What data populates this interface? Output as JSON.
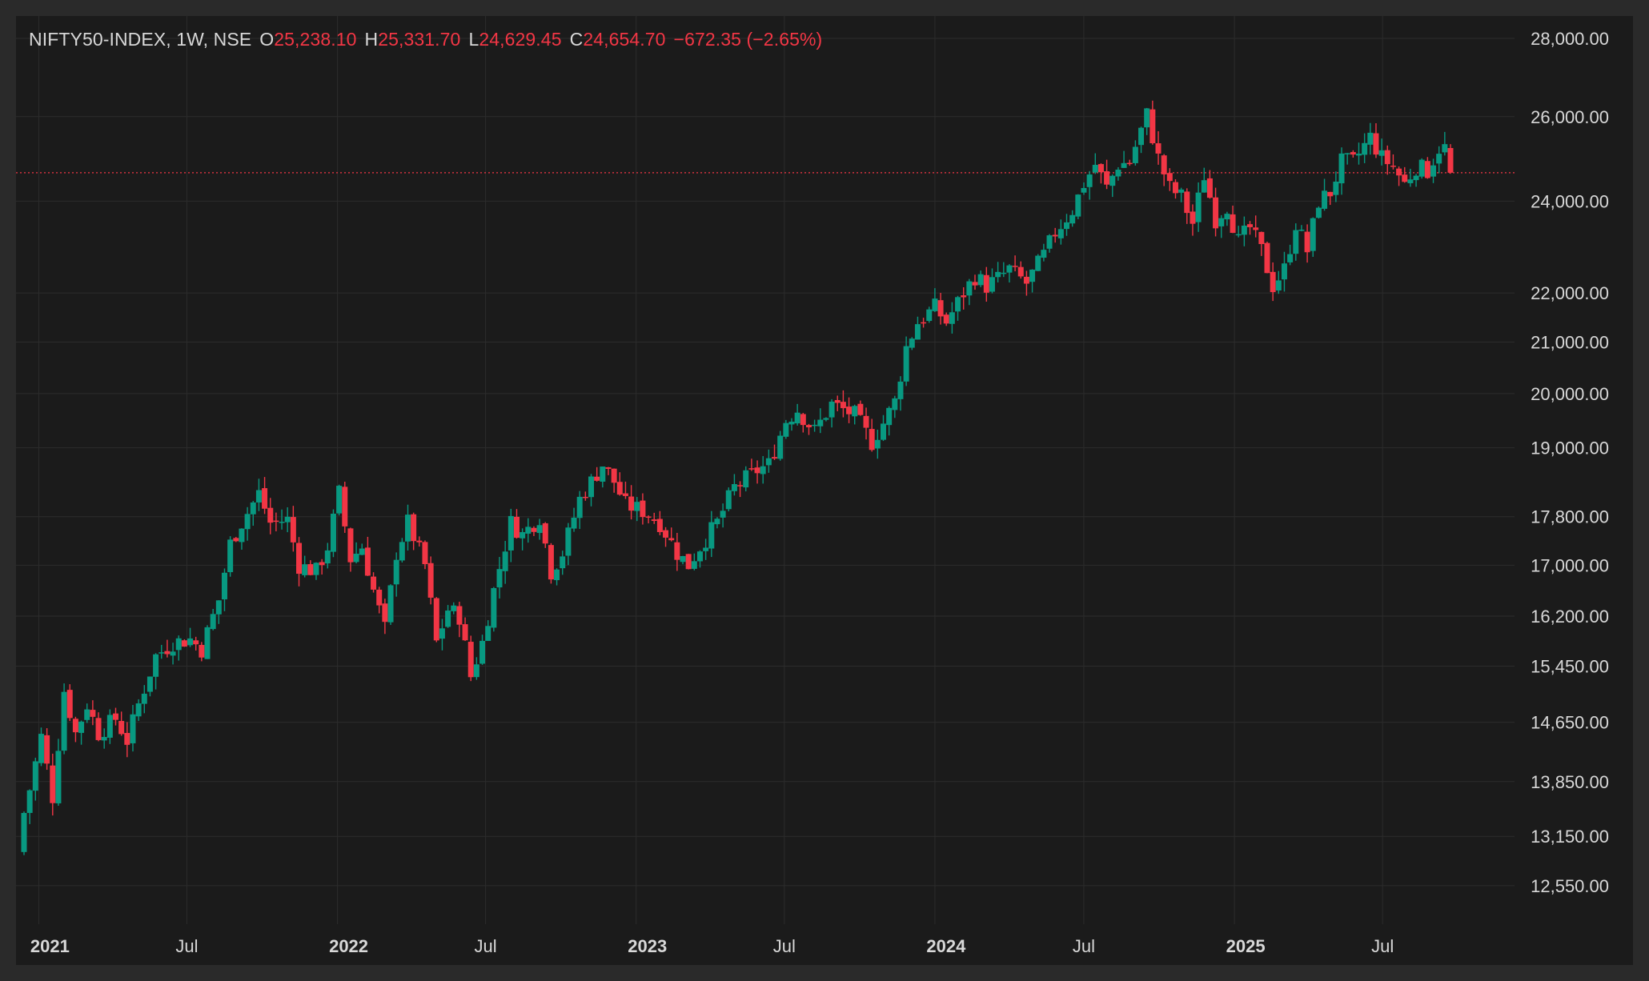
{
  "colors": {
    "background": "#1b1b1b",
    "frame": "#2a2a2a",
    "grid": "#2c2c2c",
    "up": "#089981",
    "down": "#f23645",
    "text": "#d8d8d8",
    "price_line": "#f23645"
  },
  "legend": {
    "symbol": "NIFTY50-INDEX, 1W, NSE",
    "open_label": "O",
    "open_value": "25,238.10",
    "high_label": "H",
    "high_value": "25,331.70",
    "low_label": "L",
    "low_value": "24,629.45",
    "close_label": "C",
    "close_value": "24,654.70",
    "change": "−672.35 (−2.65%)"
  },
  "chart_data": {
    "type": "candlestick",
    "title": "NIFTY50-INDEX, 1W, NSE",
    "y_scale": "log",
    "ylim": [
      12100,
      28600
    ],
    "y_ticks": [
      {
        "value": 28000,
        "label": "28,000.00"
      },
      {
        "value": 26000,
        "label": "26,000.00"
      },
      {
        "value": 24000,
        "label": "24,000.00"
      },
      {
        "value": 22000,
        "label": "22,000.00"
      },
      {
        "value": 21000,
        "label": "21,000.00"
      },
      {
        "value": 20000,
        "label": "20,000.00"
      },
      {
        "value": 19000,
        "label": "19,000.00"
      },
      {
        "value": 17800,
        "label": "17,800.00"
      },
      {
        "value": 17000,
        "label": "17,000.00"
      },
      {
        "value": 16200,
        "label": "16,200.00"
      },
      {
        "value": 15450,
        "label": "15,450.00"
      },
      {
        "value": 14650,
        "label": "14,650.00"
      },
      {
        "value": 13850,
        "label": "13,850.00"
      },
      {
        "value": 13150,
        "label": "13,150.00"
      },
      {
        "value": 12550,
        "label": "12,550.00"
      }
    ],
    "x_range": [
      "2020-12-14",
      "2025-09-22"
    ],
    "x_ticks": [
      {
        "date": "2021-01-01",
        "label": "2021",
        "major": true
      },
      {
        "date": "2021-07-01",
        "label": "Jul",
        "major": false
      },
      {
        "date": "2022-01-01",
        "label": "2022",
        "major": true
      },
      {
        "date": "2022-07-01",
        "label": "Jul",
        "major": false
      },
      {
        "date": "2023-01-01",
        "label": "2023",
        "major": true
      },
      {
        "date": "2023-07-01",
        "label": "Jul",
        "major": false
      },
      {
        "date": "2024-01-01",
        "label": "2024",
        "major": true
      },
      {
        "date": "2024-07-01",
        "label": "Jul",
        "major": false
      },
      {
        "date": "2025-01-01",
        "label": "2025",
        "major": true
      },
      {
        "date": "2025-07-01",
        "label": "Jul",
        "major": false
      }
    ],
    "current_price": 24654.7,
    "anchors": [
      [
        "2020-12-14",
        13150
      ],
      [
        "2020-12-28",
        13750
      ],
      [
        "2021-01-11",
        14450
      ],
      [
        "2021-01-25",
        13650
      ],
      [
        "2021-02-08",
        15100
      ],
      [
        "2021-02-22",
        14500
      ],
      [
        "2021-03-08",
        14900
      ],
      [
        "2021-03-22",
        14500
      ],
      [
        "2021-04-12",
        14700
      ],
      [
        "2021-04-26",
        14400
      ],
      [
        "2021-05-10",
        14900
      ],
      [
        "2021-05-31",
        15600
      ],
      [
        "2021-06-21",
        15800
      ],
      [
        "2021-07-12",
        15850
      ],
      [
        "2021-07-26",
        15700
      ],
      [
        "2021-08-16",
        16450
      ],
      [
        "2021-08-30",
        17350
      ],
      [
        "2021-09-13",
        17700
      ],
      [
        "2021-10-04",
        18200
      ],
      [
        "2021-10-18",
        17700
      ],
      [
        "2021-11-08",
        17750
      ],
      [
        "2021-11-22",
        17000
      ],
      [
        "2021-12-13",
        16900
      ],
      [
        "2021-12-27",
        17300
      ],
      [
        "2022-01-10",
        18200
      ],
      [
        "2022-01-24",
        17100
      ],
      [
        "2022-02-07",
        17300
      ],
      [
        "2022-02-21",
        16600
      ],
      [
        "2022-03-07",
        16000
      ],
      [
        "2022-03-21",
        17200
      ],
      [
        "2022-04-04",
        17700
      ],
      [
        "2022-04-25",
        17000
      ],
      [
        "2022-05-09",
        15800
      ],
      [
        "2022-05-23",
        16300
      ],
      [
        "2022-06-06",
        16200
      ],
      [
        "2022-06-20",
        15300
      ],
      [
        "2022-07-04",
        15800
      ],
      [
        "2022-07-18",
        16600
      ],
      [
        "2022-08-08",
        17700
      ],
      [
        "2022-08-22",
        17500
      ],
      [
        "2022-09-12",
        17800
      ],
      [
        "2022-09-26",
        16900
      ],
      [
        "2022-10-10",
        17200
      ],
      [
        "2022-10-31",
        18100
      ],
      [
        "2022-11-28",
        18700
      ],
      [
        "2022-12-12",
        18400
      ],
      [
        "2022-12-26",
        18000
      ],
      [
        "2023-01-16",
        17900
      ],
      [
        "2023-02-06",
        17700
      ],
      [
        "2023-02-27",
        17200
      ],
      [
        "2023-03-13",
        17000
      ],
      [
        "2023-03-27",
        17300
      ],
      [
        "2023-04-17",
        17700
      ],
      [
        "2023-05-08",
        18300
      ],
      [
        "2023-06-05",
        18600
      ],
      [
        "2023-06-19",
        18700
      ],
      [
        "2023-07-10",
        19500
      ],
      [
        "2023-07-24",
        19700
      ],
      [
        "2023-08-14",
        19300
      ],
      [
        "2023-09-04",
        19800
      ],
      [
        "2023-09-18",
        19700
      ],
      [
        "2023-10-02",
        19600
      ],
      [
        "2023-10-23",
        19100
      ],
      [
        "2023-11-06",
        19450
      ],
      [
        "2023-11-20",
        19850
      ],
      [
        "2023-12-04",
        20900
      ],
      [
        "2023-12-18",
        21400
      ],
      [
        "2024-01-08",
        21700
      ],
      [
        "2024-01-22",
        21400
      ],
      [
        "2024-02-12",
        22000
      ],
      [
        "2024-02-26",
        22350
      ],
      [
        "2024-03-11",
        22150
      ],
      [
        "2024-03-25",
        22300
      ],
      [
        "2024-04-08",
        22500
      ],
      [
        "2024-04-29",
        22200
      ],
      [
        "2024-05-20",
        22800
      ],
      [
        "2024-06-03",
        23300
      ],
      [
        "2024-06-24",
        23800
      ],
      [
        "2024-07-08",
        24400
      ],
      [
        "2024-07-22",
        24850
      ],
      [
        "2024-08-05",
        24300
      ],
      [
        "2024-08-19",
        24850
      ],
      [
        "2024-09-02",
        24900
      ],
      [
        "2024-09-23",
        26050
      ],
      [
        "2024-10-07",
        25000
      ],
      [
        "2024-10-21",
        24300
      ],
      [
        "2024-11-04",
        24100
      ],
      [
        "2024-11-18",
        23500
      ],
      [
        "2024-12-02",
        24600
      ],
      [
        "2024-12-16",
        23600
      ],
      [
        "2024-12-30",
        23900
      ],
      [
        "2025-01-13",
        23100
      ],
      [
        "2025-01-27",
        23400
      ],
      [
        "2025-02-10",
        22900
      ],
      [
        "2025-02-24",
        22150
      ],
      [
        "2025-03-10",
        22500
      ],
      [
        "2025-03-24",
        23500
      ],
      [
        "2025-04-07",
        22900
      ],
      [
        "2025-04-21",
        24000
      ],
      [
        "2025-05-05",
        24200
      ],
      [
        "2025-05-19",
        24900
      ],
      [
        "2025-06-02",
        24900
      ],
      [
        "2025-06-23",
        25500
      ],
      [
        "2025-07-07",
        25000
      ],
      [
        "2025-07-21",
        24800
      ],
      [
        "2025-08-04",
        24400
      ],
      [
        "2025-08-18",
        24800
      ],
      [
        "2025-09-01",
        24700
      ],
      [
        "2025-09-15",
        25238.1
      ]
    ],
    "last_candle": {
      "date": "2025-09-22",
      "open": 25238.1,
      "high": 25331.7,
      "low": 24629.45,
      "close": 24654.7
    }
  }
}
